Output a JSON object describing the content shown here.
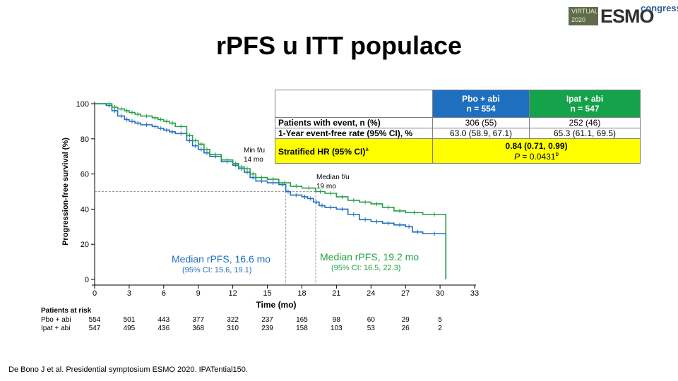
{
  "logo": {
    "virtual_line1": "VIRTUAL",
    "virtual_line2": "2020",
    "esmo": "ESMO",
    "congress": "congress"
  },
  "title": "rPFS u ITT populace",
  "table": {
    "arm1_line1": "Pbo + abi",
    "arm1_line2": "n = 554",
    "arm2_line1": "Ipat + abi",
    "arm2_line2": "n = 547",
    "rows": [
      {
        "label": "Patients with event, n (%)",
        "arm1": "306 (55)",
        "arm2": "252 (46)"
      },
      {
        "label": "1-Year event-free rate (95% CI), %",
        "arm1": "63.0 (58.9, 67.1)",
        "arm2": "65.3 (61.1, 69.5)"
      }
    ],
    "hr_label": "Stratified HR (95% CI)",
    "hr_label_sup": "a",
    "hr_value": "0.84 (0.71, 0.99)",
    "p_prefix": "P",
    "p_value": " = 0.0431",
    "p_sup": "b"
  },
  "risk": {
    "heading": "Patients at risk",
    "arm1_label": "Pbo + abi",
    "arm2_label": "Ipat + abi",
    "arm1_values": [
      "554",
      "501",
      "443",
      "377",
      "322",
      "237",
      "165",
      "98",
      "60",
      "29",
      "5"
    ],
    "arm2_values": [
      "547",
      "495",
      "436",
      "368",
      "310",
      "239",
      "158",
      "103",
      "53",
      "26",
      "2"
    ]
  },
  "footnote": "De Bono J et al. Presidential symptosium ESMO 2020. IPATential150.",
  "chart_data": {
    "type": "line",
    "xlabel": "Time (mo)",
    "ylabel": "Progression-free survival (%)",
    "xlim": [
      0,
      33
    ],
    "ylim": [
      0,
      100
    ],
    "xticks": [
      0,
      3,
      6,
      9,
      12,
      15,
      18,
      21,
      24,
      27,
      30,
      33
    ],
    "yticks": [
      0,
      20,
      40,
      60,
      80,
      100
    ],
    "annotations": {
      "minfu": [
        "Min f/u",
        "14 mo"
      ],
      "medfu": [
        "Median f/u",
        "19 mo"
      ],
      "median_blue": [
        "Median rPFS, 16.6 mo",
        "(95% CI: 15.6, 19.1)"
      ],
      "median_green": [
        "Median rPFS, 19.2 mo",
        "(95% CI: 16.5, 22.3)"
      ]
    },
    "reference_lines": {
      "median_y": 50,
      "median_blue_x": 16.6,
      "median_green_x": 19.2
    },
    "series": [
      {
        "name": "Pbo + abi",
        "color": "#1f6fc0",
        "x": [
          0,
          1.0,
          1.5,
          2.0,
          2.6,
          3.0,
          3.5,
          4.0,
          5.0,
          5.5,
          6.0,
          6.5,
          7.0,
          8.0,
          8.5,
          9.0,
          9.5,
          10.0,
          11.0,
          12.0,
          12.5,
          13.0,
          13.5,
          14.0,
          15.0,
          16.0,
          16.6,
          17.0,
          18.0,
          18.5,
          19.0,
          19.5,
          20.0,
          21.0,
          22.0,
          23.0,
          24.0,
          25.0,
          26.0,
          27.0,
          27.6,
          28.5,
          30.5,
          30.5
        ],
        "y": [
          100,
          99,
          96,
          93,
          91,
          90,
          89,
          88,
          87,
          86,
          85,
          84,
          83,
          79,
          76,
          74,
          72,
          70,
          67,
          65,
          63,
          61,
          58,
          56,
          55,
          54,
          50,
          48,
          47,
          46,
          44,
          42,
          41,
          40,
          37,
          34,
          33,
          32,
          31,
          30,
          27,
          26,
          26,
          0
        ]
      },
      {
        "name": "Ipat + abi",
        "color": "#22a045",
        "x": [
          0,
          1.0,
          1.5,
          2.0,
          2.6,
          3.0,
          3.5,
          4.0,
          5.0,
          5.5,
          6.0,
          6.5,
          7.0,
          8.0,
          8.5,
          9.0,
          9.5,
          10.0,
          11.0,
          12.0,
          12.5,
          13.0,
          13.5,
          14.0,
          15.0,
          16.0,
          17.0,
          18.0,
          19.2,
          20.0,
          21.0,
          22.0,
          23.0,
          24.0,
          25.0,
          26.0,
          27.0,
          28.5,
          30.5,
          30.5
        ],
        "y": [
          100,
          100,
          98,
          97,
          96,
          95,
          94,
          93,
          92,
          91,
          90,
          89,
          87,
          82,
          79,
          77,
          74,
          71,
          68,
          66,
          64,
          63,
          60,
          58,
          57,
          55,
          53,
          52,
          50,
          49,
          47,
          45,
          44,
          43,
          41,
          39,
          38,
          37,
          33,
          0
        ]
      }
    ]
  }
}
